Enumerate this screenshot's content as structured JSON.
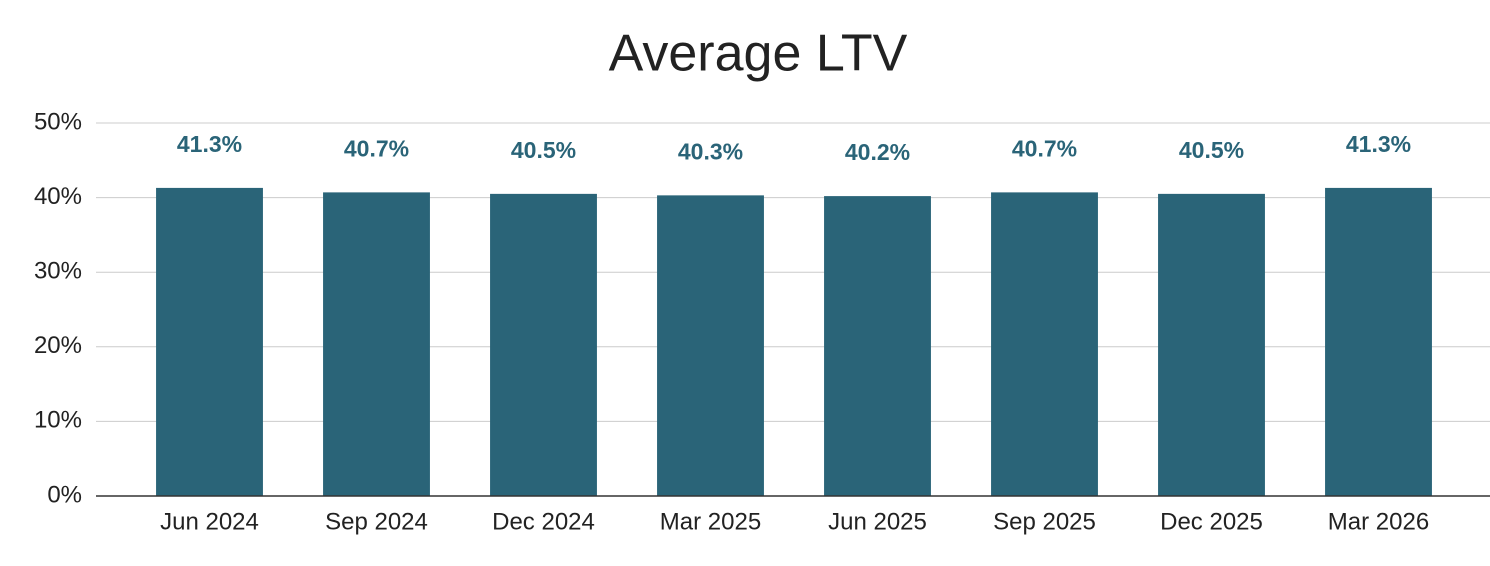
{
  "chart_data": {
    "type": "bar",
    "title": "Average LTV",
    "categories": [
      "Jun 2024",
      "Sep 2024",
      "Dec 2024",
      "Mar 2025",
      "Jun 2025",
      "Sep 2025",
      "Dec 2025",
      "Mar 2026"
    ],
    "values": [
      41.3,
      40.7,
      40.5,
      40.3,
      40.2,
      40.7,
      40.5,
      41.3
    ],
    "value_labels": [
      "41.3%",
      "40.7%",
      "40.5%",
      "40.3%",
      "40.2%",
      "40.7%",
      "40.5%",
      "41.3%"
    ],
    "color": "#2a6478",
    "ylim": [
      0,
      50
    ],
    "yticks": [
      {
        "value": 0,
        "label": "0%"
      },
      {
        "value": 10,
        "label": "10%"
      },
      {
        "value": 20,
        "label": "20%"
      },
      {
        "value": 30,
        "label": "30%"
      },
      {
        "value": 40,
        "label": "40%"
      },
      {
        "value": 50,
        "label": "50%"
      }
    ],
    "grid": true
  }
}
